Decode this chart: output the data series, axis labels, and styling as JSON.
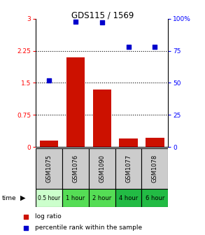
{
  "title": "GDS115 / 1569",
  "samples": [
    "GSM1075",
    "GSM1076",
    "GSM1090",
    "GSM1077",
    "GSM1078"
  ],
  "time_labels": [
    "0.5 hour",
    "1 hour",
    "2 hour",
    "4 hour",
    "6 hour"
  ],
  "time_colors": [
    "#ccffcc",
    "#55dd55",
    "#55dd55",
    "#22bb44",
    "#22bb44"
  ],
  "log_ratio": [
    0.15,
    2.1,
    1.35,
    0.2,
    0.22
  ],
  "percentile_rank": [
    52,
    98,
    97,
    78,
    78
  ],
  "bar_color": "#cc1100",
  "dot_color": "#0000cc",
  "ylim_left": [
    0,
    3
  ],
  "ylim_right": [
    0,
    100
  ],
  "yticks_left": [
    0,
    0.75,
    1.5,
    2.25,
    3
  ],
  "ytick_labels_left": [
    "0",
    "0.75",
    "1.5",
    "2.25",
    "3"
  ],
  "yticks_right": [
    0,
    25,
    50,
    75,
    100
  ],
  "ytick_labels_right": [
    "0",
    "25",
    "50",
    "75",
    "100%"
  ],
  "hlines": [
    0.75,
    1.5,
    2.25
  ],
  "sample_box_color": "#cccccc",
  "legend_log_ratio": "log ratio",
  "legend_percentile": "percentile rank within the sample"
}
